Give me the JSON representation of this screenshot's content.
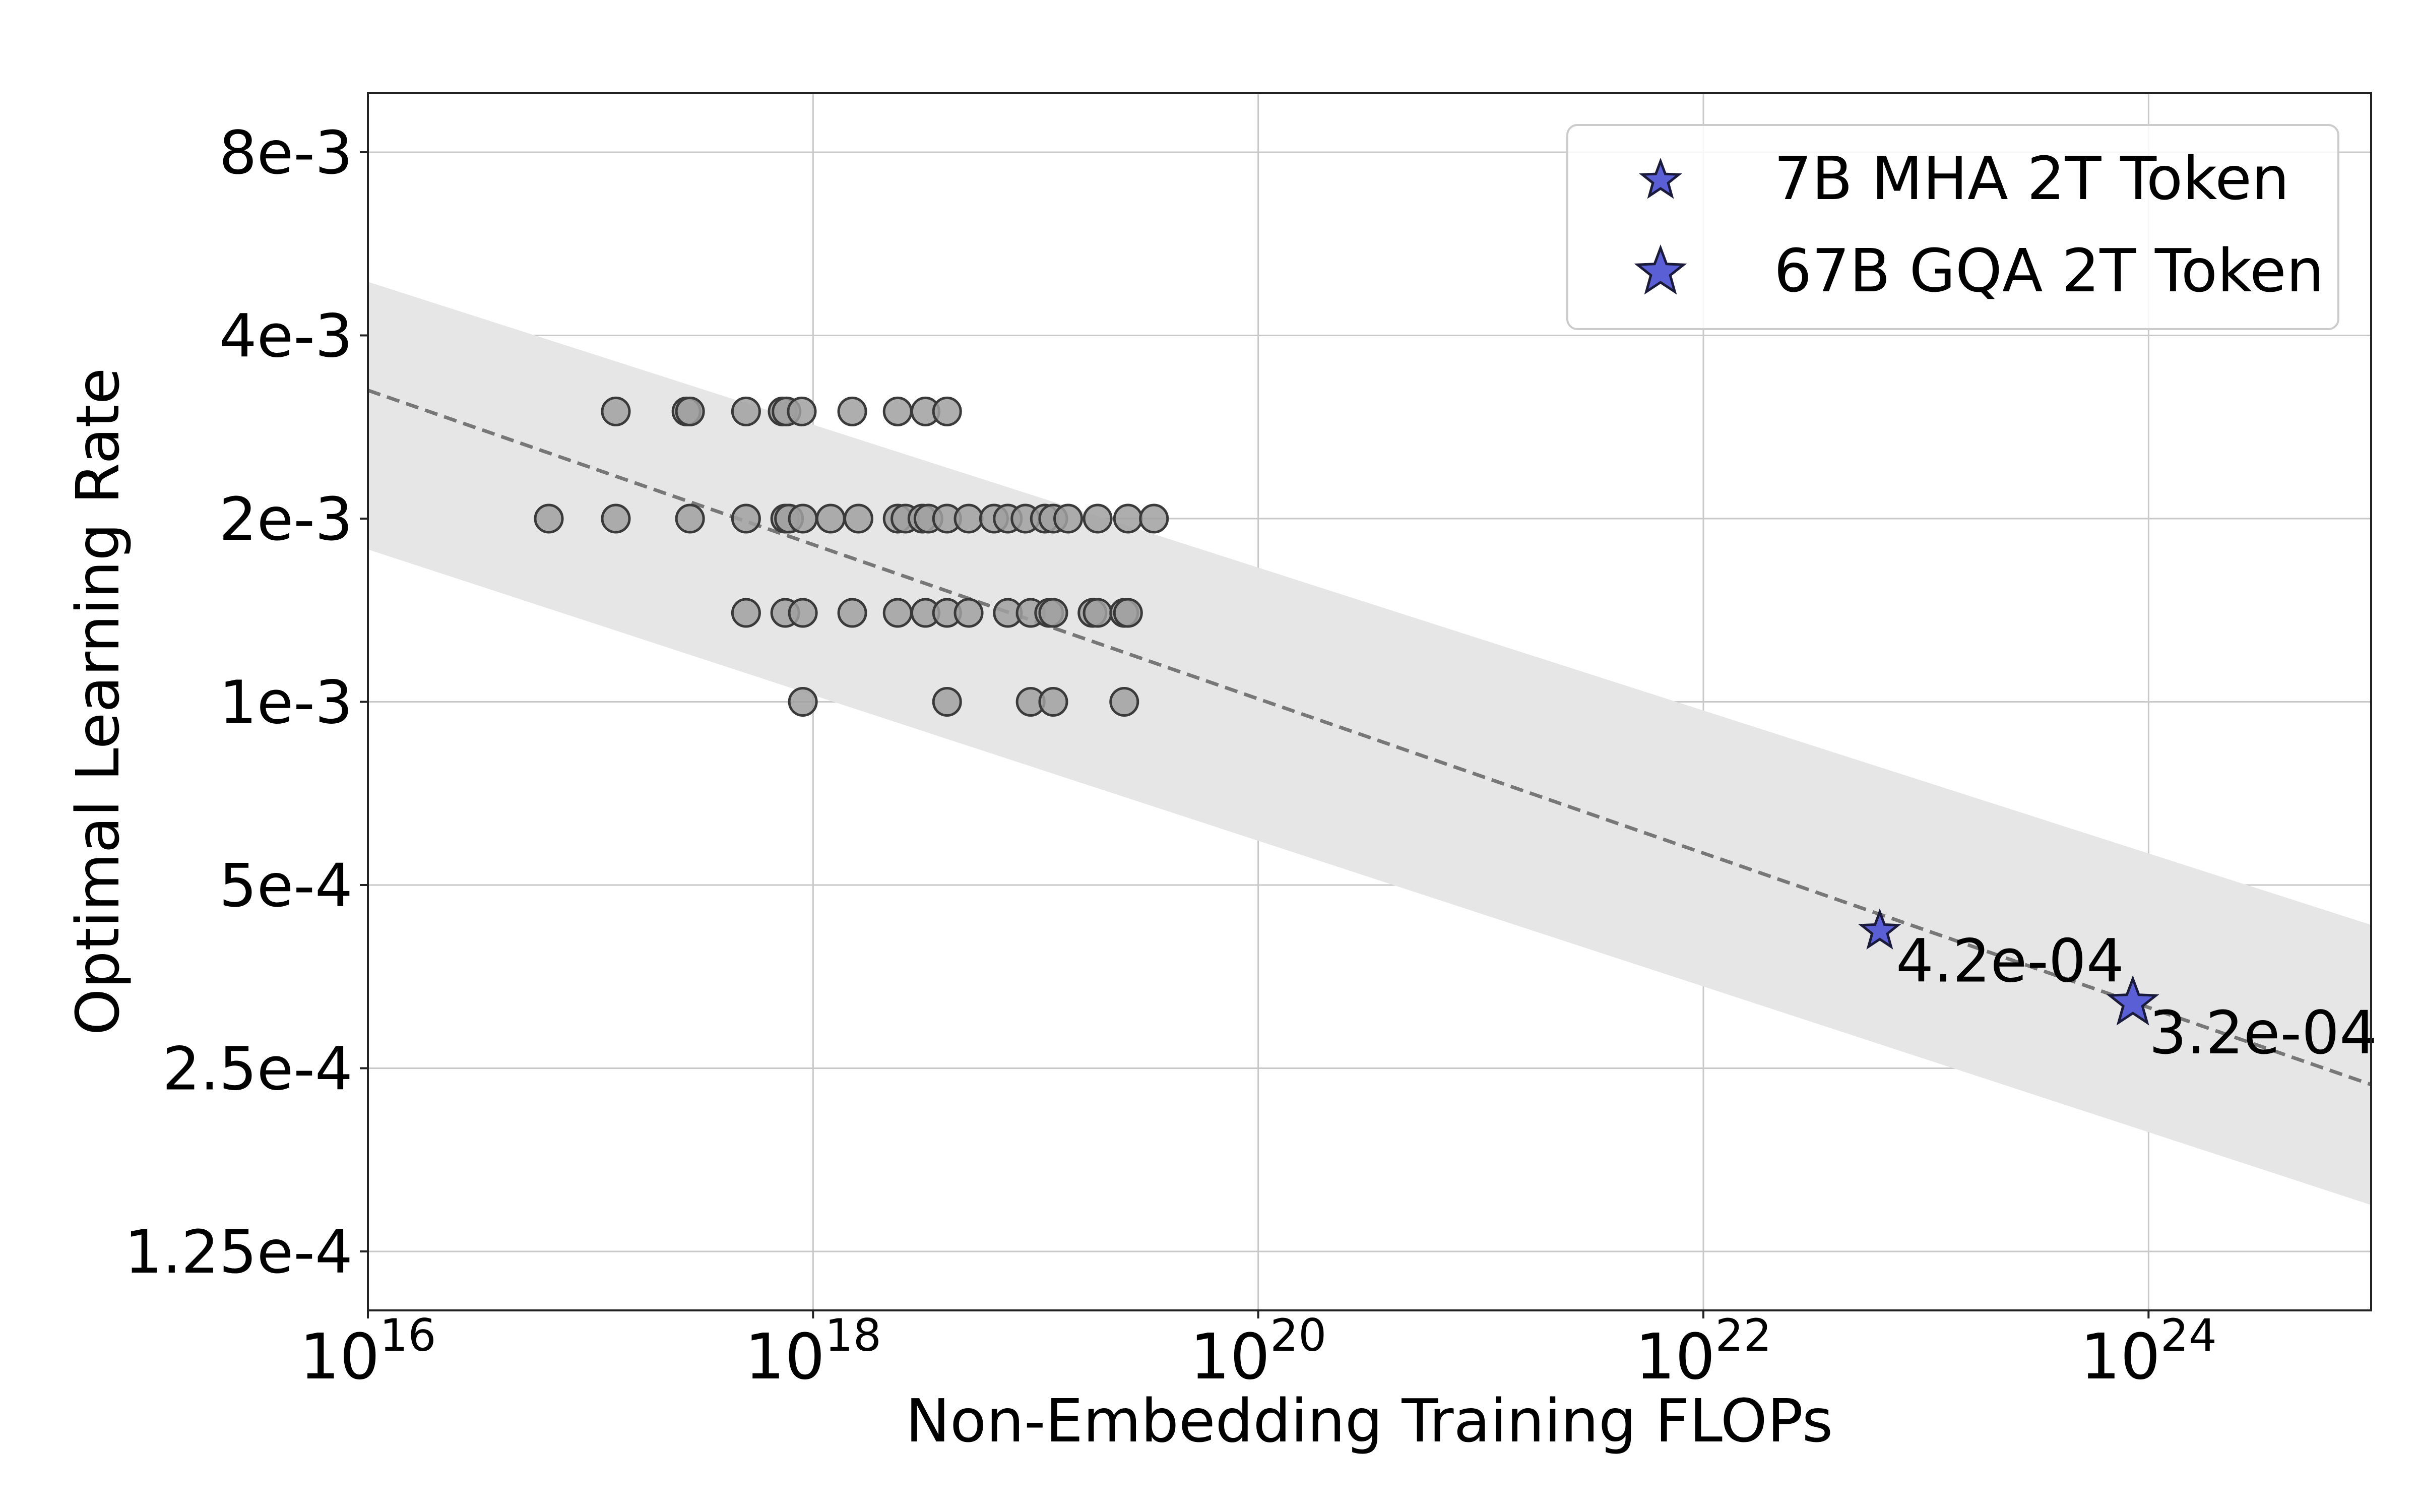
{
  "chart_data": {
    "type": "scatter",
    "title": "",
    "xlabel": "Non-Embedding Training FLOPs",
    "ylabel": "Optimal Learning Rate",
    "x_scale": "log",
    "y_scale": "log2",
    "xlim": [
      1e+16,
      1e+25
    ],
    "ylim": [
      0.0001,
      0.01
    ],
    "x_ticks": [
      {
        "value": 1e+16,
        "base": "10",
        "exp": "16"
      },
      {
        "value": 1e+18,
        "base": "10",
        "exp": "18"
      },
      {
        "value": 1e+20,
        "base": "10",
        "exp": "20"
      },
      {
        "value": 1e+22,
        "base": "10",
        "exp": "22"
      },
      {
        "value": 1e+24,
        "base": "10",
        "exp": "24"
      }
    ],
    "y_ticks": [
      {
        "value": 0.008,
        "label": "8e-3"
      },
      {
        "value": 0.004,
        "label": "4e-3"
      },
      {
        "value": 0.002,
        "label": "2e-3"
      },
      {
        "value": 0.001,
        "label": "1e-3"
      },
      {
        "value": 0.0005,
        "label": "5e-4"
      },
      {
        "value": 0.00025,
        "label": "2.5e-4"
      },
      {
        "value": 0.000125,
        "label": "1.25e-4"
      }
    ],
    "grid": true,
    "fit_line": {
      "x": [
        1e+16,
        1e+25
      ],
      "y": [
        0.00325,
        0.000235
      ],
      "style": "dashed",
      "color": "#777777"
    },
    "confidence_band": {
      "x": [
        1e+16,
        1e+25
      ],
      "upper": [
        0.0049,
        0.00043
      ],
      "lower": [
        0.00178,
        0.000149
      ],
      "color": "#e6e6e6"
    },
    "sample_points": {
      "color": "#a0a0a0",
      "edge_color": "#3a3a3a",
      "points": [
        [
          6.5e+16,
          0.002
        ],
        [
          1.3e+17,
          0.002
        ],
        [
          2.8e+17,
          0.002
        ],
        [
          5e+17,
          0.002
        ],
        [
          7.5e+17,
          0.002
        ],
        [
          7.8e+17,
          0.002
        ],
        [
          9e+17,
          0.002
        ],
        [
          1.2e+18,
          0.002
        ],
        [
          1.6e+18,
          0.002
        ],
        [
          2.4e+18,
          0.002
        ],
        [
          2.6e+18,
          0.002
        ],
        [
          3.1e+18,
          0.002
        ],
        [
          3.3e+18,
          0.002
        ],
        [
          4e+18,
          0.002
        ],
        [
          5e+18,
          0.002
        ],
        [
          6.5e+18,
          0.002
        ],
        [
          7.5e+18,
          0.002
        ],
        [
          9e+18,
          0.002
        ],
        [
          1.1e+19,
          0.002
        ],
        [
          1.2e+19,
          0.002
        ],
        [
          1.4e+19,
          0.002
        ],
        [
          1.9e+19,
          0.002
        ],
        [
          2.6e+19,
          0.002
        ],
        [
          3.4e+19,
          0.002
        ],
        [
          1.3e+17,
          0.003
        ],
        [
          2.7e+17,
          0.003
        ],
        [
          2.8e+17,
          0.003
        ],
        [
          5e+17,
          0.003
        ],
        [
          7.3e+17,
          0.003
        ],
        [
          7.6e+17,
          0.003
        ],
        [
          8.9e+17,
          0.003
        ],
        [
          1.5e+18,
          0.003
        ],
        [
          2.4e+18,
          0.003
        ],
        [
          3.2e+18,
          0.003
        ],
        [
          4e+18,
          0.003
        ],
        [
          5e+17,
          0.0014
        ],
        [
          7.5e+17,
          0.0014
        ],
        [
          9e+17,
          0.0014
        ],
        [
          1.5e+18,
          0.0014
        ],
        [
          2.4e+18,
          0.0014
        ],
        [
          3.2e+18,
          0.0014
        ],
        [
          4e+18,
          0.0014
        ],
        [
          5e+18,
          0.0014
        ],
        [
          7.5e+18,
          0.0014
        ],
        [
          9.5e+18,
          0.0014
        ],
        [
          1.15e+19,
          0.0014
        ],
        [
          1.2e+19,
          0.0014
        ],
        [
          1.8e+19,
          0.0014
        ],
        [
          1.9e+19,
          0.0014
        ],
        [
          2.5e+19,
          0.0014
        ],
        [
          2.6e+19,
          0.0014
        ],
        [
          9e+17,
          0.001
        ],
        [
          4e+18,
          0.001
        ],
        [
          9.5e+18,
          0.001
        ],
        [
          1.2e+19,
          0.001
        ],
        [
          2.5e+19,
          0.001
        ]
      ]
    },
    "series": [
      {
        "name": "7B MHA 2T Token",
        "marker": "star",
        "color": "#5a5fd6",
        "size": "small",
        "x": 6.2e+22,
        "y": 0.00042,
        "label": "4.2e-04"
      },
      {
        "name": "67B GQA 2T Token",
        "marker": "star",
        "color": "#5a5fd6",
        "size": "large",
        "x": 8.5e+23,
        "y": 0.00032,
        "label": "3.2e-04"
      }
    ],
    "legend_position": "top-right"
  }
}
